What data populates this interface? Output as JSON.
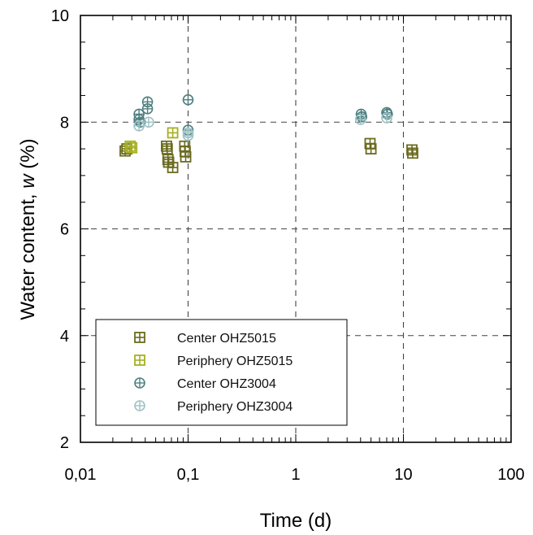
{
  "chart_data": {
    "type": "scatter",
    "xlabel": "Time (d)",
    "ylabel_main": "Water content, ",
    "ylabel_var": "w",
    "ylabel_unit": " (%)",
    "x_scale": "log",
    "xlim": [
      0.01,
      100
    ],
    "ylim": [
      2,
      10
    ],
    "x_ticks": [
      {
        "value": 0.01,
        "label": "0,01"
      },
      {
        "value": 0.1,
        "label": "0,1"
      },
      {
        "value": 1,
        "label": "1"
      },
      {
        "value": 10,
        "label": "10"
      },
      {
        "value": 100,
        "label": "100"
      }
    ],
    "y_ticks": [
      {
        "value": 2,
        "label": "2"
      },
      {
        "value": 4,
        "label": "4"
      },
      {
        "value": 6,
        "label": "6"
      },
      {
        "value": 8,
        "label": "8"
      },
      {
        "value": 10,
        "label": "10"
      }
    ],
    "grid": "dashed, major ticks",
    "legend_position": "lower-left",
    "series": [
      {
        "name": "Center OHZ5015",
        "marker": "square-plus",
        "color": "#6b6b1f",
        "points": [
          [
            0.026,
            7.46
          ],
          [
            0.027,
            7.5
          ],
          [
            0.063,
            7.55
          ],
          [
            0.064,
            7.5
          ],
          [
            0.065,
            7.3
          ],
          [
            0.066,
            7.25
          ],
          [
            0.072,
            7.15
          ],
          [
            0.093,
            7.55
          ],
          [
            0.094,
            7.45
          ],
          [
            0.095,
            7.35
          ],
          [
            4.9,
            7.6
          ],
          [
            5.0,
            7.5
          ],
          [
            12,
            7.48
          ],
          [
            12.2,
            7.42
          ]
        ]
      },
      {
        "name": "Periphery OHZ5015",
        "marker": "square-plus",
        "color": "#a6b020",
        "points": [
          [
            0.029,
            7.55
          ],
          [
            0.03,
            7.52
          ],
          [
            0.072,
            7.8
          ]
        ]
      },
      {
        "name": "Center OHZ3004",
        "marker": "circle-plus",
        "color": "#4f7f80",
        "points": [
          [
            0.035,
            8.15
          ],
          [
            0.035,
            8.05
          ],
          [
            0.036,
            8.0
          ],
          [
            0.042,
            8.38
          ],
          [
            0.042,
            8.25
          ],
          [
            0.1,
            8.42
          ],
          [
            0.1,
            7.85
          ],
          [
            4.05,
            8.15
          ],
          [
            4.1,
            8.1
          ],
          [
            7.0,
            8.18
          ],
          [
            7.1,
            8.15
          ]
        ]
      },
      {
        "name": "Periphery OHZ3004",
        "marker": "circle-plus",
        "color": "#9ec2c6",
        "points": [
          [
            0.035,
            7.93
          ],
          [
            0.043,
            8.0
          ],
          [
            0.1,
            7.8
          ],
          [
            0.1,
            7.75
          ],
          [
            4.0,
            8.05
          ],
          [
            7.0,
            8.08
          ]
        ]
      }
    ]
  }
}
